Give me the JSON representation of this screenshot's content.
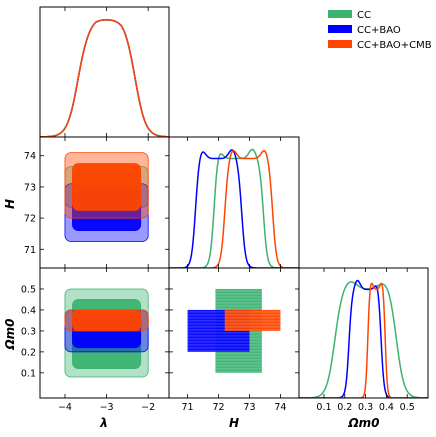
{
  "chart_data": {
    "type": "corner",
    "parameters": [
      {
        "symbol": "λ",
        "range": [
          -4.6,
          -1.5
        ],
        "ticks": [
          -4,
          -3,
          -2
        ],
        "tick_labels": [
          "−4",
          "−3",
          "−2"
        ]
      },
      {
        "symbol": "H",
        "range": [
          70.4,
          74.6
        ],
        "ticks": [
          71,
          72,
          73,
          74
        ],
        "tick_labels": [
          "71",
          "72",
          "73",
          "74"
        ]
      },
      {
        "symbol": "Ωm0",
        "range": [
          -0.02,
          0.6
        ],
        "ticks": [
          0.1,
          0.2,
          0.3,
          0.4,
          0.5
        ],
        "tick_labels": [
          "0.1",
          "0.2",
          "0.3",
          "0.4",
          "0.5"
        ]
      }
    ],
    "axis_labels": {
      "x": [
        "λ",
        "H",
        "Ωm0"
      ],
      "y": [
        "H",
        "Ωm0"
      ]
    },
    "legend": {
      "placement": "top-right",
      "entries": [
        "CC",
        "CC+BAO",
        "CC+BAO+CMB"
      ]
    },
    "series": [
      {
        "name": "CC",
        "color": "#3cb371",
        "marginals": {
          "lambda": {
            "lo": -3.7,
            "hi": -2.3,
            "peaks": [
              -3.2,
              -2.7
            ]
          },
          "H": {
            "lo": 71.85,
            "hi": 73.45,
            "peaks": [
              72.0,
              73.1
            ]
          },
          "Om0": {
            "lo": 0.15,
            "hi": 0.45,
            "peaks": [
              0.22,
              0.4
            ]
          }
        },
        "contours_lambda_H": {
          "x": [
            -4.0,
            -2.0
          ],
          "inner_y": [
            72.5,
            73.5
          ],
          "outer_y": [
            72.35,
            73.65
          ]
        },
        "contours_lambda_Om0": {
          "x": [
            -4.0,
            -2.0
          ],
          "inner_y": [
            0.12,
            0.45
          ],
          "outer_y": [
            0.08,
            0.5
          ]
        },
        "contour_H_Om0": {
          "x": [
            71.9,
            73.4
          ],
          "y": [
            0.1,
            0.5
          ]
        }
      },
      {
        "name": "CC+BAO",
        "color": "#0000ff",
        "marginals": {
          "lambda": {
            "lo": -3.7,
            "hi": -2.3,
            "peaks": [
              -3.2,
              -2.7
            ]
          },
          "H": {
            "lo": 71.25,
            "hi": 72.75,
            "peaks": [
              71.45,
              72.45
            ]
          },
          "Om0": {
            "lo": 0.22,
            "hi": 0.375,
            "peaks": [
              0.26,
              0.36
            ]
          }
        },
        "contours_lambda_H": {
          "x": [
            -4.0,
            -2.0
          ],
          "inner_y": [
            71.6,
            72.9
          ],
          "outer_y": [
            71.25,
            73.1
          ]
        },
        "contours_lambda_Om0": {
          "x": [
            -4.0,
            -2.0
          ],
          "inner_y": [
            0.22,
            0.38
          ],
          "outer_y": [
            0.2,
            0.4
          ]
        },
        "contour_H_Om0": {
          "x": [
            71.0,
            73.0
          ],
          "y": [
            0.2,
            0.4
          ]
        }
      },
      {
        "name": "CC+BAO+CMB",
        "color": "#ff4500",
        "marginals": {
          "lambda": {
            "lo": -3.7,
            "hi": -2.3,
            "peaks": [
              -3.2,
              -2.7
            ]
          },
          "H": {
            "lo": 72.2,
            "hi": 73.75,
            "peaks": [
              72.45,
              73.5
            ]
          },
          "Om0": {
            "lo": 0.31,
            "hi": 0.395,
            "peaks": [
              0.325,
              0.38
            ]
          }
        },
        "contours_lambda_H": {
          "x": [
            -4.0,
            -2.0
          ],
          "inner_y": [
            72.25,
            73.75
          ],
          "outer_y": [
            72.0,
            74.1
          ]
        },
        "contours_lambda_Om0": {
          "x": [
            -4.0,
            -2.0
          ],
          "inner_y": [
            0.3,
            0.4
          ],
          "outer_y": [
            0.3,
            0.4
          ]
        },
        "contour_H_Om0": {
          "x": [
            72.2,
            74.0
          ],
          "y": [
            0.3,
            0.4
          ]
        }
      }
    ]
  }
}
